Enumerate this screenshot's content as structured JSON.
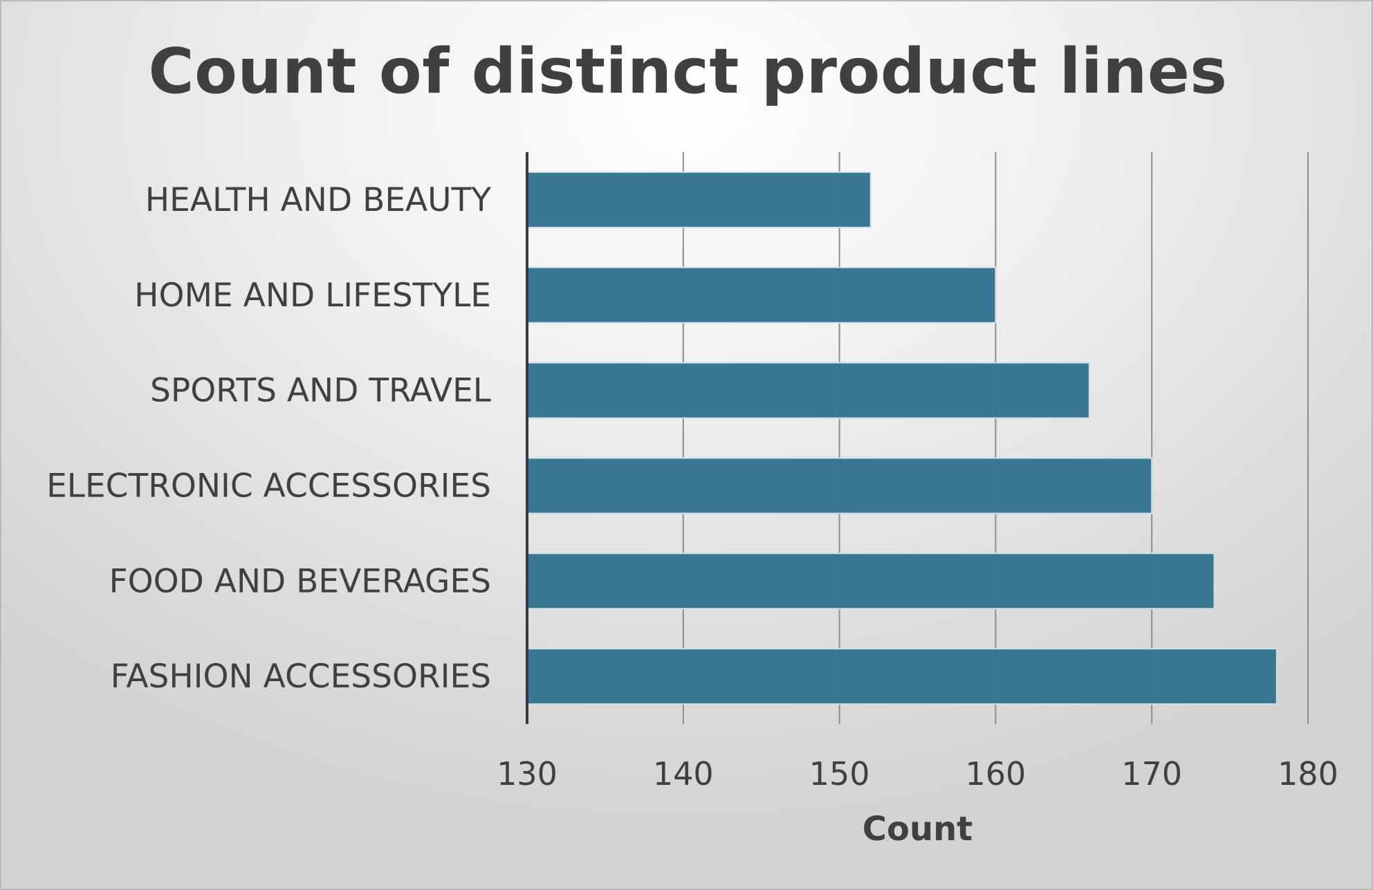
{
  "chart_data": {
    "type": "bar",
    "orientation": "horizontal",
    "title": "Count of distinct product lines",
    "xlabel": "Count",
    "ylabel": "",
    "categories": [
      "HEALTH AND BEAUTY",
      "HOME AND LIFESTYLE",
      "SPORTS AND TRAVEL",
      "ELECTRONIC ACCESSORIES",
      "FOOD AND BEVERAGES",
      "FASHION ACCESSORIES"
    ],
    "values": [
      152,
      160,
      166,
      170,
      174,
      178
    ],
    "xlim": [
      130,
      180
    ],
    "xticks": [
      130,
      140,
      150,
      160,
      170,
      180
    ],
    "grid": "vertical",
    "legend": "none",
    "colors": {
      "bar": "#357591",
      "bar_edge": "#cfe0ea",
      "grid": "#8c8c8c",
      "axis": "#3a3a3a",
      "text": "#404040"
    }
  }
}
